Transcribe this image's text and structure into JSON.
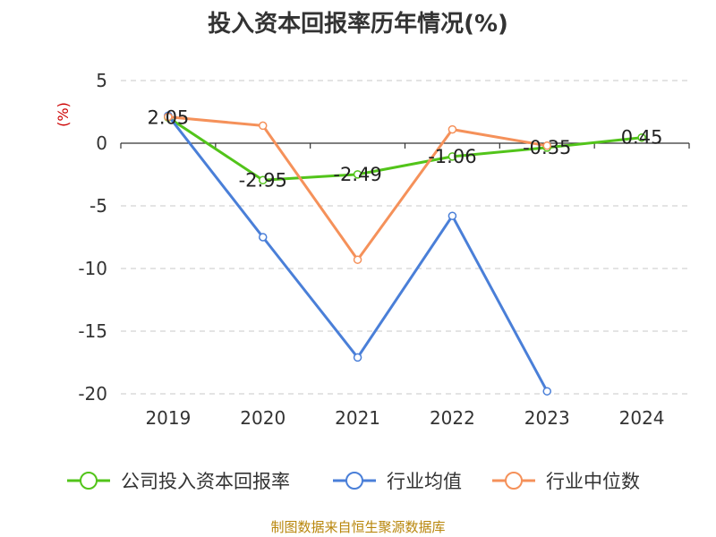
{
  "chart_data": {
    "type": "line",
    "title": "投入资本回报率历年情况(%)",
    "ylabel": "(%)",
    "categories": [
      "2019",
      "2020",
      "2021",
      "2022",
      "2023",
      "2024"
    ],
    "ylim": [
      -20,
      5
    ],
    "yticks": [
      5,
      0,
      -5,
      -10,
      -15,
      -20
    ],
    "grid": true,
    "legend_position": "bottom",
    "series": [
      {
        "name": "公司投入资本回报率",
        "color": "#52c41a",
        "values": [
          2.05,
          -2.95,
          -2.49,
          -1.06,
          -0.35,
          0.45
        ],
        "labels": [
          "2.05",
          "-2.95",
          "-2.49",
          "-1.06",
          "-0.35",
          "0.45"
        ]
      },
      {
        "name": "行业均值",
        "color": "#4a7fd8",
        "values": [
          2.2,
          -7.5,
          -17.1,
          -5.8,
          -19.8,
          null
        ]
      },
      {
        "name": "行业中位数",
        "color": "#f5915a",
        "values": [
          2.1,
          1.4,
          -9.3,
          1.1,
          -0.2,
          null
        ]
      }
    ]
  },
  "source": "制图数据来自恒生聚源数据库"
}
